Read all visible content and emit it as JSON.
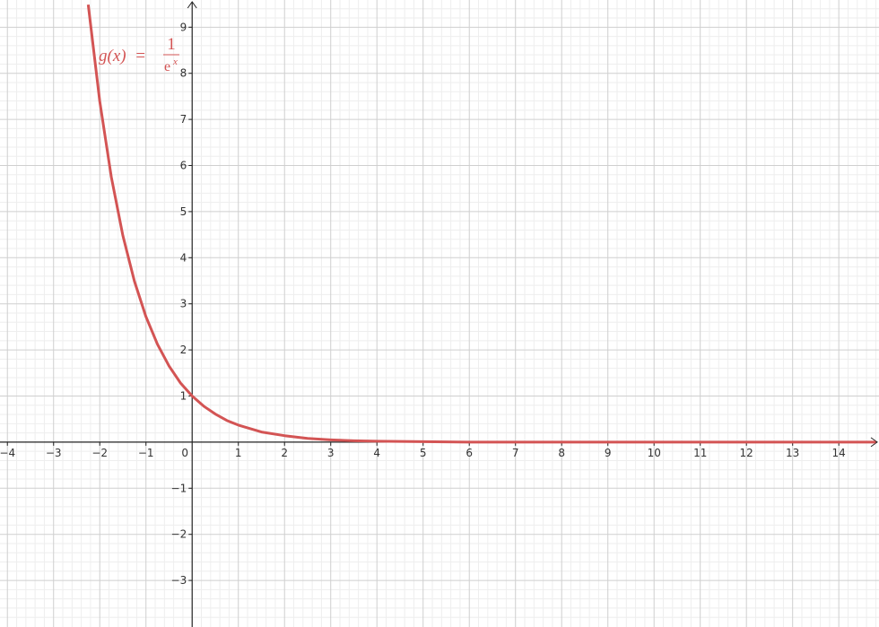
{
  "chart_data": {
    "type": "line",
    "annotation": {
      "lhs": "g(x)  =",
      "numerator": "1",
      "denominator": "e",
      "exponent": "x"
    },
    "x": [
      -2.25,
      -2,
      -1.75,
      -1.5,
      -1.25,
      -1,
      -0.75,
      -0.5,
      -0.25,
      0,
      0.25,
      0.5,
      0.75,
      1,
      1.5,
      2,
      2.5,
      3,
      3.5,
      4,
      5,
      6,
      8,
      10,
      12,
      14.8
    ],
    "series": [
      {
        "color": "#d35454",
        "values": [
          9.49,
          7.39,
          5.75,
          4.48,
          3.49,
          2.72,
          2.12,
          1.65,
          1.28,
          1,
          0.78,
          0.61,
          0.47,
          0.37,
          0.22,
          0.14,
          0.08,
          0.05,
          0.03,
          0.02,
          0.01,
          0,
          0,
          0,
          0,
          0
        ]
      }
    ],
    "xlim": [
      -4.16,
      14.87
    ],
    "ylim": [
      -4.01,
      9.59
    ],
    "xticks": [
      {
        "value": -4,
        "label": "−4"
      },
      {
        "value": -3,
        "label": "−3"
      },
      {
        "value": -2,
        "label": "−2"
      },
      {
        "value": -1,
        "label": "−1"
      },
      0,
      1,
      2,
      3,
      4,
      5,
      6,
      7,
      8,
      9,
      10,
      11,
      12,
      13,
      14
    ],
    "yticks": [
      {
        "value": -3,
        "label": "−3"
      },
      {
        "value": -2,
        "label": "−2"
      },
      {
        "value": -1,
        "label": "−1"
      },
      1,
      2,
      3,
      4,
      5,
      6,
      7,
      8,
      9
    ],
    "grid": true,
    "minor_grid": 5
  }
}
